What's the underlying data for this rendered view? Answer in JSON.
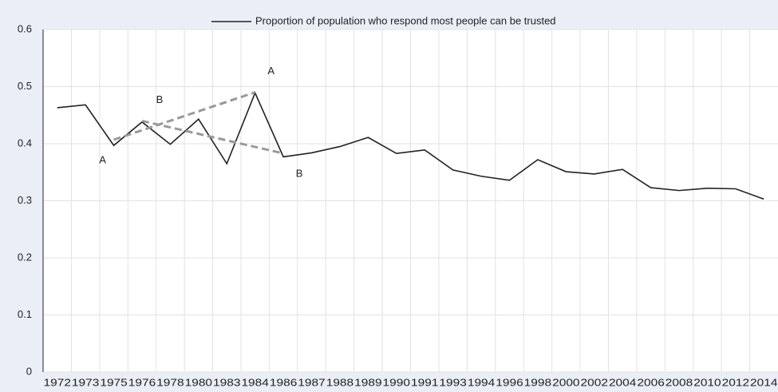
{
  "chart_data": {
    "type": "line",
    "categories": [
      "1972",
      "1973",
      "1975",
      "1976",
      "1978",
      "1980",
      "1983",
      "1984",
      "1986",
      "1987",
      "1988",
      "1989",
      "1990",
      "1991",
      "1993",
      "1994",
      "1996",
      "1998",
      "2000",
      "2002",
      "2004",
      "2006",
      "2008",
      "2010",
      "2012",
      "2014"
    ],
    "series": [
      {
        "name": "Proportion of population who respond most people can be trusted",
        "color": "#222222",
        "values": [
          0.463,
          0.468,
          0.397,
          0.438,
          0.399,
          0.443,
          0.365,
          0.489,
          0.377,
          0.384,
          0.395,
          0.411,
          0.383,
          0.389,
          0.354,
          0.343,
          0.336,
          0.372,
          0.351,
          0.347,
          0.355,
          0.323,
          0.318,
          0.322,
          0.321,
          0.303
        ]
      }
    ],
    "ylim": [
      0,
      0.6
    ],
    "yticks": [
      0,
      0.1,
      0.2,
      0.3,
      0.4,
      0.5,
      0.6
    ],
    "grid": true,
    "legend": "top",
    "annotation_lines": [
      {
        "name": "A",
        "color": "#999999",
        "points": [
          {
            "x": "1975",
            "y": 0.407
          },
          {
            "x": "1984",
            "y": 0.49
          }
        ]
      },
      {
        "name": "B",
        "color": "#999999",
        "points": [
          {
            "x": "1976",
            "y": 0.44
          },
          {
            "x": "1986",
            "y": 0.383
          }
        ]
      }
    ]
  }
}
